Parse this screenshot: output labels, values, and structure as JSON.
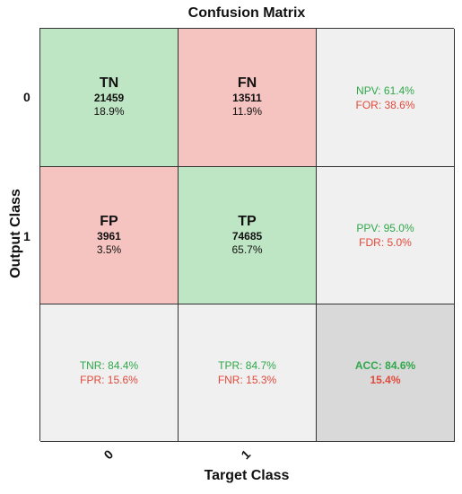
{
  "chart_data": {
    "type": "table",
    "title": "Confusion Matrix",
    "xlabel": "Target Class",
    "ylabel": "Output Class",
    "x_ticks": [
      "0",
      "1"
    ],
    "y_ticks": [
      "0",
      "1"
    ],
    "cells": [
      {
        "label": "TN",
        "count": "21459",
        "percent": "18.9%"
      },
      {
        "label": "FN",
        "count": "13511",
        "percent": "11.9%"
      },
      {
        "label": "FP",
        "count": "3961",
        "percent": "3.5%"
      },
      {
        "label": "TP",
        "count": "74685",
        "percent": "65.7%"
      }
    ],
    "row_summary": [
      {
        "good": "NPV: 61.4%",
        "bad": "FOR: 38.6%"
      },
      {
        "good": "PPV: 95.0%",
        "bad": "FDR: 5.0%"
      }
    ],
    "col_summary": [
      {
        "good": "TNR: 84.4%",
        "bad": "FPR: 15.6%"
      },
      {
        "good": "TPR: 84.7%",
        "bad": "FNR: 15.3%"
      }
    ],
    "overall": {
      "good": "ACC: 84.6%",
      "bad": "15.4%"
    },
    "colors": {
      "correct": "#bfe6c4",
      "incorrect": "#f5c4c0",
      "summary": "#f0f0f0",
      "overall": "#d9d9d9",
      "good_text": "#2fa84a",
      "bad_text": "#e04a3c"
    }
  }
}
